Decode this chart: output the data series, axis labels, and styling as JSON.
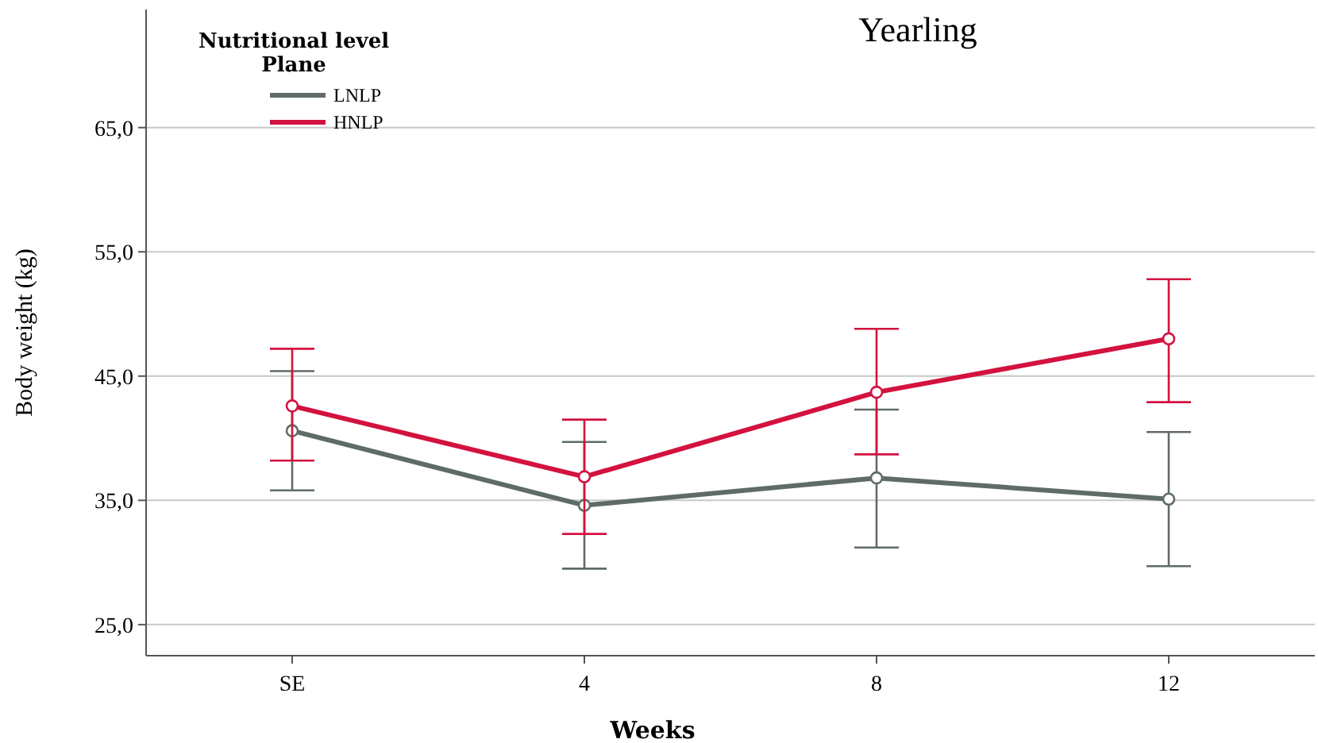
{
  "chart_data": {
    "type": "line",
    "title": "Yearling",
    "xlabel": "Weeks",
    "ylabel": "Body weight (kg)",
    "legend_title": "Nutritional level\nPlane",
    "categories": [
      "SE",
      "4",
      "8",
      "12"
    ],
    "series": [
      {
        "name": "LNLP",
        "color": "#5f6b68",
        "values": [
          40.6,
          34.6,
          36.8,
          35.1
        ],
        "errors": [
          [
            35.8,
            45.4
          ],
          [
            29.5,
            39.7
          ],
          [
            31.2,
            42.3
          ],
          [
            29.7,
            40.5
          ]
        ]
      },
      {
        "name": "HNLP",
        "color": "#d3123f",
        "values": [
          42.6,
          36.9,
          43.7,
          48.0
        ],
        "errors": [
          [
            38.2,
            47.2
          ],
          [
            32.3,
            41.5
          ],
          [
            38.7,
            48.8
          ],
          [
            42.9,
            52.8
          ]
        ]
      }
    ],
    "ylim": [
      22.5,
      74.5
    ],
    "yticks": [
      {
        "value": 25,
        "label": "25,0"
      },
      {
        "value": 35,
        "label": "35,0"
      },
      {
        "value": 45,
        "label": "45,0"
      },
      {
        "value": 55,
        "label": "55,0"
      },
      {
        "value": 65,
        "label": "65,0"
      }
    ],
    "grid": "y",
    "legend": "top left",
    "marker": "circle",
    "line_style": "solid"
  }
}
